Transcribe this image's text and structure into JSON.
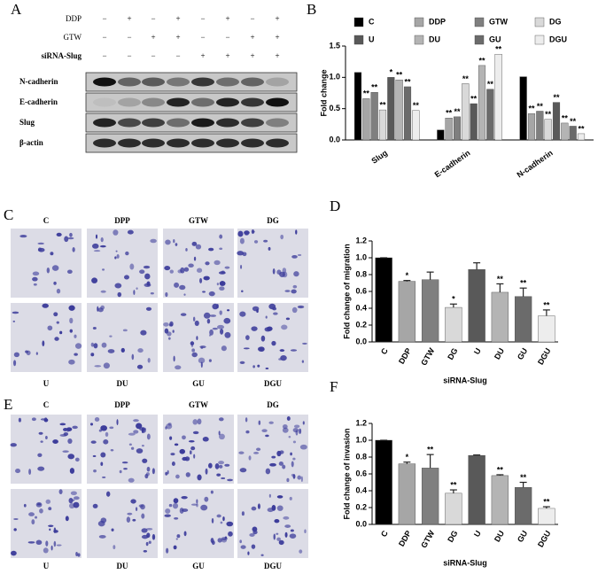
{
  "panel_a": {
    "letter": "A",
    "treatments": [
      {
        "name": "DDP",
        "signs": [
          "−",
          "+",
          "−",
          "+",
          "−",
          "+",
          "−",
          "+"
        ]
      },
      {
        "name": "GTW",
        "signs": [
          "−",
          "−",
          "+",
          "+",
          "−",
          "−",
          "+",
          "+"
        ]
      },
      {
        "name": "siRNA-Slug",
        "signs": [
          "−",
          "−",
          "−",
          "−",
          "+",
          "+",
          "+",
          "+"
        ]
      }
    ],
    "bands": [
      "N-cadherin",
      "E-cadherin",
      "Slug",
      "β-actin"
    ]
  },
  "panel_c": {
    "letter": "C",
    "top_labels": [
      "C",
      "DPP",
      "GTW",
      "DG"
    ],
    "bottom_labels": [
      "U",
      "DU",
      "GU",
      "DGU"
    ]
  },
  "panel_e": {
    "letter": "E",
    "top_labels": [
      "C",
      "DPP",
      "GTW",
      "DG"
    ],
    "bottom_labels": [
      "U",
      "DU",
      "GU",
      "DGU"
    ]
  },
  "chart_data": [
    {
      "type": "bar",
      "letter": "B",
      "y_label": "Fold change",
      "categories": [
        "Slug",
        "E-cadherin",
        "N-cadherin"
      ],
      "series": [
        {
          "name": "C",
          "color": "#000000",
          "values": [
            1.08,
            0.16,
            1.01
          ],
          "significance": [
            null,
            null,
            null
          ]
        },
        {
          "name": "DDP",
          "color": "#a6a6a6",
          "values": [
            0.66,
            0.35,
            0.42
          ],
          "significance": [
            "**",
            "**",
            "**"
          ]
        },
        {
          "name": "GTW",
          "color": "#7f7f7f",
          "values": [
            0.76,
            0.37,
            0.46
          ],
          "significance": [
            "**",
            "**",
            "**"
          ]
        },
        {
          "name": "DG",
          "color": "#d9d9d9",
          "values": [
            0.48,
            0.9,
            0.33
          ],
          "significance": [
            "**",
            "**",
            "**"
          ]
        },
        {
          "name": "U",
          "color": "#595959",
          "values": [
            1.0,
            0.58,
            0.6
          ],
          "significance": [
            "*",
            "**",
            "**"
          ]
        },
        {
          "name": "DU",
          "color": "#b4b4b4",
          "values": [
            0.96,
            1.19,
            0.27
          ],
          "significance": [
            "**",
            "**",
            "**"
          ]
        },
        {
          "name": "GU",
          "color": "#6b6b6b",
          "values": [
            0.85,
            0.81,
            0.22
          ],
          "significance": [
            "**",
            "**",
            "**"
          ]
        },
        {
          "name": "DGU",
          "color": "#ededed",
          "values": [
            0.47,
            1.37,
            0.1
          ],
          "significance": [
            "**",
            "**",
            "**"
          ]
        }
      ],
      "ylim": [
        0,
        1.5
      ],
      "yticks": [
        {
          "value": 0,
          "label": "0.0"
        },
        0.5,
        {
          "value": 1,
          "label": "1.0"
        },
        1.5
      ]
    },
    {
      "type": "bar",
      "letter": "D",
      "y_label": "Fold change of migration",
      "x_label": "siRNA-Slug",
      "categories": [
        "C",
        "DDP",
        "GTW",
        "DG",
        "U",
        "DU",
        "GU",
        "DGU"
      ],
      "colors": [
        "#000000",
        "#a6a6a6",
        "#7f7f7f",
        "#d9d9d9",
        "#595959",
        "#b4b4b4",
        "#6b6b6b",
        "#ededed"
      ],
      "values": [
        1.0,
        0.72,
        0.74,
        0.41,
        0.86,
        0.59,
        0.54,
        0.31
      ],
      "errors": [
        0,
        0.01,
        0.09,
        0.04,
        0.08,
        0.1,
        0.1,
        0.07
      ],
      "significance": [
        null,
        "*",
        null,
        "*",
        null,
        "**",
        "**",
        "**"
      ],
      "ylim": [
        0,
        1.2
      ],
      "yticks": [
        {
          "value": 0,
          "label": "0.0"
        },
        0.2,
        0.4,
        0.6,
        0.8,
        {
          "value": 1,
          "label": "1.0"
        },
        1.2
      ]
    },
    {
      "type": "bar",
      "letter": "F",
      "y_label": "Fold change of invasion",
      "x_label": "siRNA-Slug",
      "categories": [
        "C",
        "DDP",
        "GTW",
        "DG",
        "U",
        "DU",
        "GU",
        "DGU"
      ],
      "colors": [
        "#000000",
        "#a6a6a6",
        "#7f7f7f",
        "#d9d9d9",
        "#595959",
        "#b4b4b4",
        "#6b6b6b",
        "#ededed"
      ],
      "values": [
        1.0,
        0.72,
        0.67,
        0.37,
        0.82,
        0.58,
        0.44,
        0.19
      ],
      "errors": [
        0,
        0.02,
        0.16,
        0.04,
        0.005,
        0.01,
        0.06,
        0.02
      ],
      "significance": [
        null,
        "*",
        "**",
        "**",
        null,
        "**",
        "**",
        "**"
      ],
      "ylim": [
        0,
        1.2
      ],
      "yticks": [
        {
          "value": 0,
          "label": "0.0"
        },
        0.2,
        0.4,
        0.6,
        0.8,
        {
          "value": 1,
          "label": "1.0"
        },
        1.2
      ]
    }
  ]
}
